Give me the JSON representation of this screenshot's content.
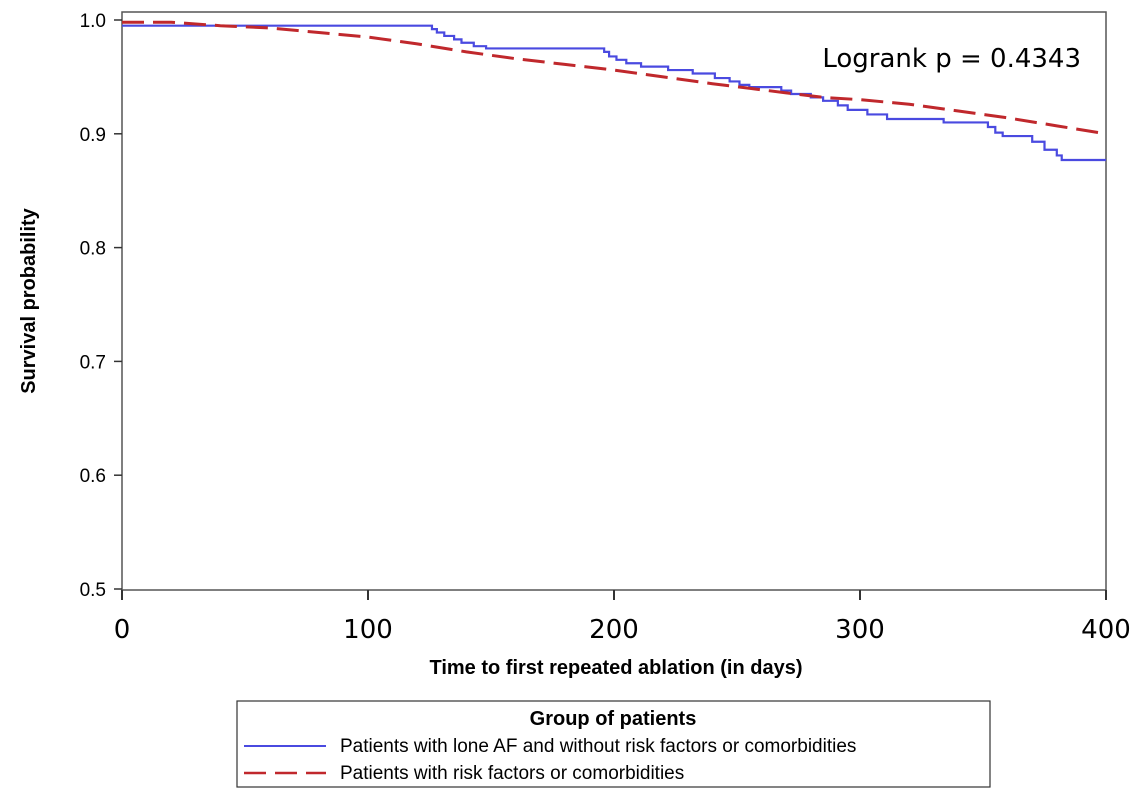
{
  "chart_data": {
    "type": "line",
    "xlabel": "Time to first repeated ablation (in days)",
    "ylabel": "Survival probability",
    "xlim": [
      0,
      400
    ],
    "ylim": [
      0.5,
      1.0
    ],
    "xticks": [
      0,
      100,
      200,
      300,
      400
    ],
    "xtick_labels": [
      "0",
      "100",
      "200",
      "300",
      "400"
    ],
    "yticks": [
      0.5,
      0.6,
      0.7,
      0.8,
      0.9,
      1.0
    ],
    "ytick_labels": [
      "0.5",
      "0.6",
      "0.7",
      "0.8",
      "0.9",
      "1.0"
    ],
    "grid": false,
    "annotation": "Logrank p = 0.4343",
    "legend": {
      "title": "Group of patients",
      "placement": "bottom"
    },
    "series": [
      {
        "name": "Patients with lone AF and without risk factors or comorbidities",
        "color": "#4a4ae0",
        "style": "solid",
        "step": true,
        "points": [
          [
            0,
            0.995
          ],
          [
            125,
            0.995
          ],
          [
            126,
            0.992
          ],
          [
            128,
            0.989
          ],
          [
            131,
            0.986
          ],
          [
            135,
            0.983
          ],
          [
            138,
            0.98
          ],
          [
            143,
            0.977
          ],
          [
            148,
            0.975
          ],
          [
            195,
            0.975
          ],
          [
            196,
            0.972
          ],
          [
            198,
            0.968
          ],
          [
            201,
            0.965
          ],
          [
            205,
            0.962
          ],
          [
            211,
            0.959
          ],
          [
            222,
            0.956
          ],
          [
            232,
            0.953
          ],
          [
            241,
            0.949
          ],
          [
            247,
            0.946
          ],
          [
            251,
            0.943
          ],
          [
            255,
            0.941
          ],
          [
            268,
            0.938
          ],
          [
            272,
            0.935
          ],
          [
            280,
            0.932
          ],
          [
            285,
            0.929
          ],
          [
            291,
            0.925
          ],
          [
            295,
            0.921
          ],
          [
            303,
            0.917
          ],
          [
            311,
            0.913
          ],
          [
            332,
            0.913
          ],
          [
            334,
            0.91
          ],
          [
            350,
            0.91
          ],
          [
            352,
            0.906
          ],
          [
            355,
            0.901
          ],
          [
            358,
            0.898
          ],
          [
            369,
            0.898
          ],
          [
            370,
            0.893
          ],
          [
            375,
            0.886
          ],
          [
            380,
            0.881
          ],
          [
            382,
            0.877
          ],
          [
            400,
            0.877
          ]
        ]
      },
      {
        "name": "Patients with risk factors or comorbidities",
        "color": "#c0282c",
        "style": "dashed",
        "step": false,
        "points": [
          [
            0,
            0.998
          ],
          [
            20,
            0.998
          ],
          [
            40,
            0.995
          ],
          [
            60,
            0.993
          ],
          [
            80,
            0.989
          ],
          [
            100,
            0.985
          ],
          [
            120,
            0.979
          ],
          [
            140,
            0.972
          ],
          [
            160,
            0.966
          ],
          [
            180,
            0.961
          ],
          [
            200,
            0.956
          ],
          [
            220,
            0.95
          ],
          [
            240,
            0.944
          ],
          [
            255,
            0.94
          ],
          [
            270,
            0.936
          ],
          [
            285,
            0.932
          ],
          [
            300,
            0.93
          ],
          [
            320,
            0.926
          ],
          [
            340,
            0.92
          ],
          [
            360,
            0.914
          ],
          [
            380,
            0.907
          ],
          [
            400,
            0.9
          ]
        ]
      }
    ]
  }
}
